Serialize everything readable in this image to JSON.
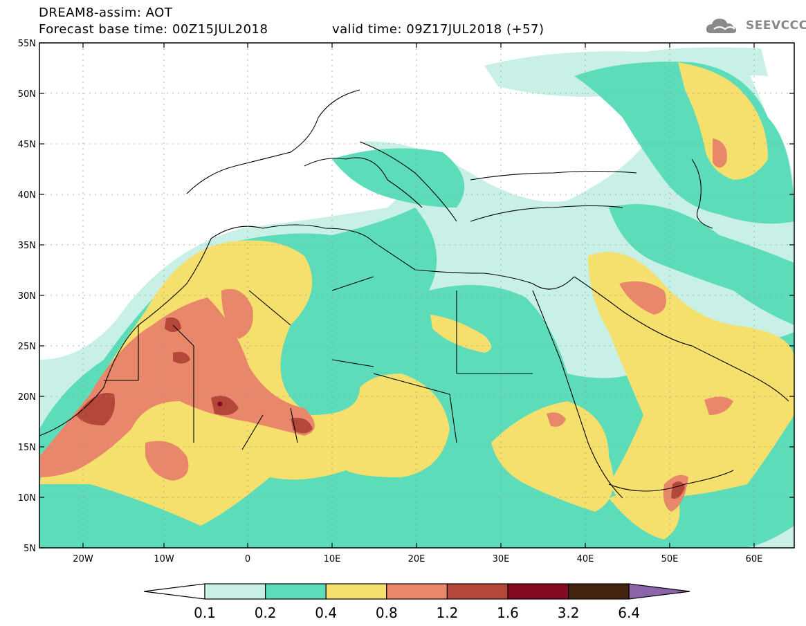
{
  "header": {
    "title": "DREAM8-assim: AOT",
    "base_time": "Forecast base time: 00Z15JUL2018",
    "valid_time": "valid time: 09Z17JUL2018 (+57)"
  },
  "brand": {
    "name": "SEEVCCC",
    "icon": "cloud-icon"
  },
  "map": {
    "lat_labels": [
      "55N",
      "50N",
      "45N",
      "40N",
      "35N",
      "30N",
      "25N",
      "20N",
      "15N",
      "10N",
      "5N"
    ],
    "lon_labels": [
      "20W",
      "10W",
      "0",
      "10E",
      "20E",
      "30E",
      "40E",
      "50E",
      "60E"
    ]
  },
  "colorbar": {
    "labels": [
      "0.1",
      "0.2",
      "0.4",
      "0.8",
      "1.2",
      "1.6",
      "3.2",
      "6.4"
    ],
    "colors": [
      "#ffffff",
      "#c8f0e6",
      "#5ddcb9",
      "#f5e06e",
      "#e9876a",
      "#b4463a",
      "#820a23",
      "#41230f",
      "#8c64aa"
    ]
  }
}
